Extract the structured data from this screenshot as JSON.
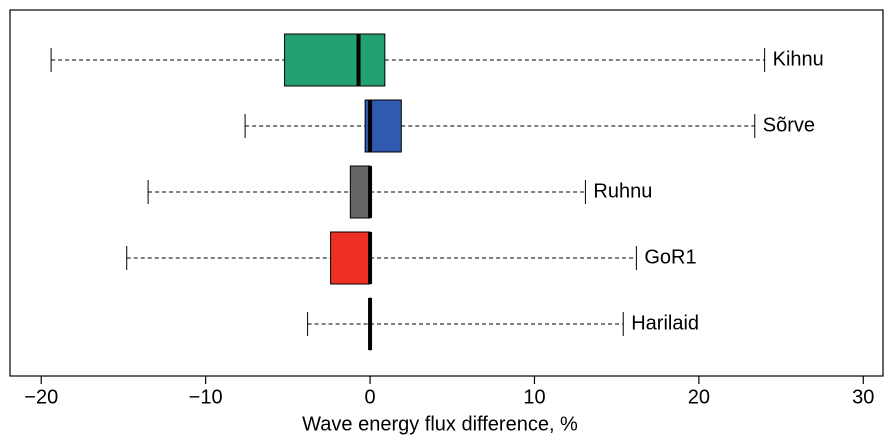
{
  "chart_data": {
    "type": "boxplot",
    "orientation": "horizontal",
    "x_label": "Wave energy flux difference, %",
    "xlim": [
      -21.9,
      31.2
    ],
    "xticks": [
      {
        "value": -20,
        "label": "−20"
      },
      {
        "value": -10,
        "label": "−10"
      },
      0,
      10,
      20,
      30
    ],
    "series": [
      {
        "name": "Kihnu",
        "color": "#23a070",
        "min": -19.4,
        "q1": -5.2,
        "median": -0.7,
        "q3": 0.9,
        "max": 24.0
      },
      {
        "name": "Sõrve",
        "color": "#2f5ab0",
        "min": -7.6,
        "q1": -0.3,
        "median": 0,
        "q3": 1.9,
        "max": 23.4
      },
      {
        "name": "Ruhnu",
        "color": "#666666",
        "min": -13.5,
        "q1": -1.2,
        "median": 0,
        "q3": 0,
        "max": 13.1
      },
      {
        "name": "GoR1",
        "color": "#ee3124",
        "min": -14.8,
        "q1": -2.4,
        "median": 0,
        "q3": 0,
        "max": 16.2
      },
      {
        "name": "Harilaid",
        "color": "#000000",
        "min": -3.8,
        "q1": 0,
        "median": 0,
        "q3": 0,
        "max": 15.4
      }
    ]
  }
}
